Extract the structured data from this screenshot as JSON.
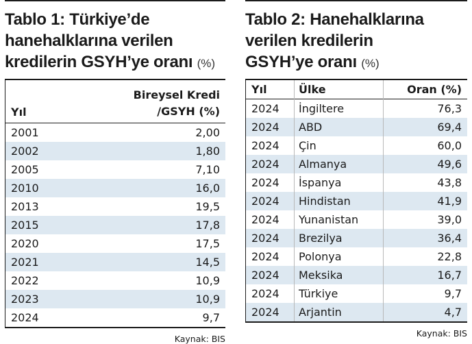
{
  "table1": {
    "title_line1": "Tablo 1: Türkiye’de",
    "title_line2": "hanehalklarına verilen",
    "title_line3": "kredilerin GSYH’ye oranı",
    "unit": "(%)",
    "col_year": "Yıl",
    "col_value_line1": "Bireysel Kredi",
    "col_value_line2": "/GSYH (%)",
    "rows": [
      {
        "year": "2001",
        "value": "2,00"
      },
      {
        "year": "2002",
        "value": "1,80"
      },
      {
        "year": "2005",
        "value": "7,10"
      },
      {
        "year": "2010",
        "value": "16,0"
      },
      {
        "year": "2013",
        "value": "19,5"
      },
      {
        "year": "2015",
        "value": "17,8"
      },
      {
        "year": "2020",
        "value": "17,5"
      },
      {
        "year": "2021",
        "value": "14,5"
      },
      {
        "year": "2022",
        "value": "10,9"
      },
      {
        "year": "2023",
        "value": "10,9"
      },
      {
        "year": "2024",
        "value": "9,7"
      }
    ],
    "source": "Kaynak: BIS"
  },
  "table2": {
    "title_line1": "Tablo 2: Hanehalklarına",
    "title_line2": "verilen kredilerin",
    "title_line3": "GSYH’ye oranı",
    "unit": "(%)",
    "col_year": "Yıl",
    "col_country": "Ülke",
    "col_value": "Oran (%)",
    "rows": [
      {
        "year": "2024",
        "country": "İngiltere",
        "value": "76,3"
      },
      {
        "year": "2024",
        "country": "ABD",
        "value": "69,4"
      },
      {
        "year": "2024",
        "country": "Çin",
        "value": "60,0"
      },
      {
        "year": "2024",
        "country": "Almanya",
        "value": "49,6"
      },
      {
        "year": "2024",
        "country": "İspanya",
        "value": "43,8"
      },
      {
        "year": "2024",
        "country": "Hindistan",
        "value": "41,9"
      },
      {
        "year": "2024",
        "country": "Yunanistan",
        "value": "39,0"
      },
      {
        "year": "2024",
        "country": "Brezilya",
        "value": "36,4"
      },
      {
        "year": "2024",
        "country": "Polonya",
        "value": "22,8"
      },
      {
        "year": "2024",
        "country": "Meksika",
        "value": "16,7"
      },
      {
        "year": "2024",
        "country": "Türkiye",
        "value": "9,7"
      },
      {
        "year": "2024",
        "country": "Arjantin",
        "value": "4,7"
      }
    ],
    "source": "Kaynak: BIS"
  }
}
